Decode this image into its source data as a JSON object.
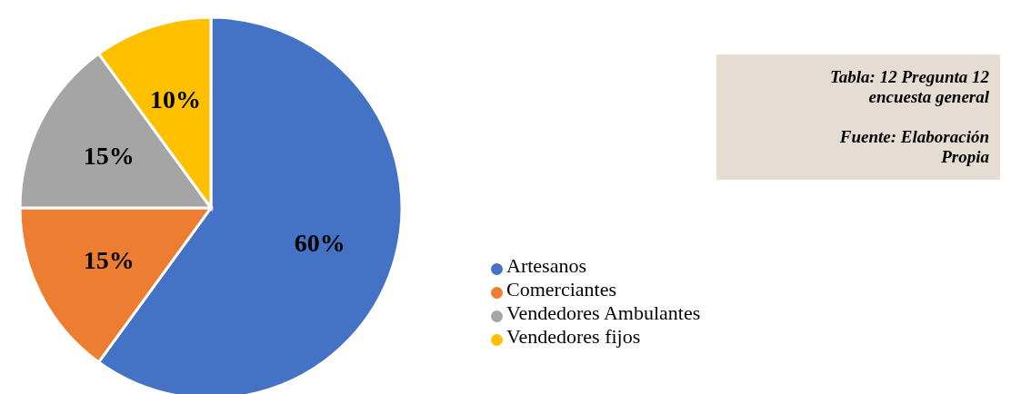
{
  "chart_data": {
    "type": "pie",
    "categories": [
      "Artesanos",
      "Comerciantes",
      "Vendedores Ambulantes",
      "Vendedores fijos"
    ],
    "values": [
      60,
      15,
      15,
      10
    ],
    "colors": [
      "#4472c4",
      "#ed7d31",
      "#a5a5a5",
      "#ffc000"
    ],
    "value_labels": [
      "60%",
      "15%",
      "15%",
      "10%"
    ],
    "legend": "right",
    "annotations": [
      "Tabla: 12 Pregunta 12 encuesta general",
      "Fuente: Elaboración Propia"
    ]
  }
}
